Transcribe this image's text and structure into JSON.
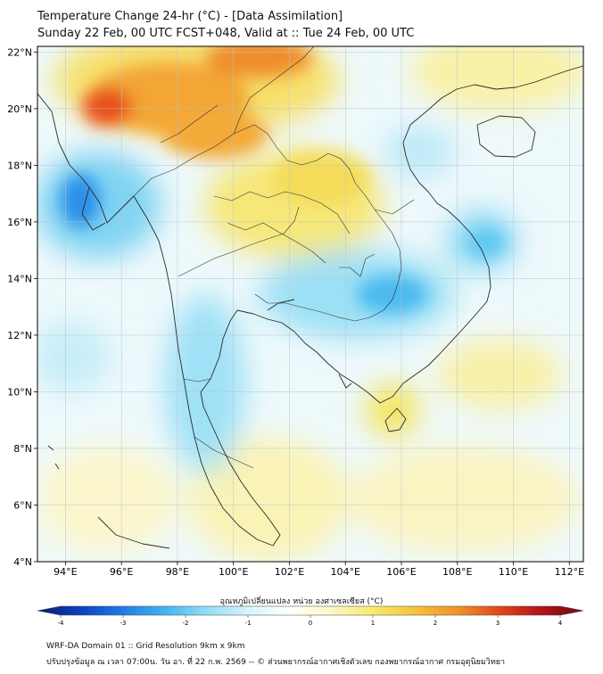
{
  "title_line1": "Temperature Change 24-hr (°C) - [Data Assimilation]",
  "title_line2": "Sunday 22 Feb, 00 UTC FCST+048, Valid at :: Tue 24 Feb, 00 UTC",
  "map": {
    "lon_range": [
      93.0,
      112.5
    ],
    "lat_range": [
      4.0,
      22.2
    ],
    "lon_ticks": [
      "94°E",
      "96°E",
      "98°E",
      "100°E",
      "102°E",
      "104°E",
      "106°E",
      "108°E",
      "110°E",
      "112°E"
    ],
    "lon_values": [
      94,
      96,
      98,
      100,
      102,
      104,
      106,
      108,
      110,
      112
    ],
    "lat_ticks": [
      "4°N",
      "6°N",
      "8°N",
      "10°N",
      "12°N",
      "14°N",
      "16°N",
      "18°N",
      "20°N",
      "22°N"
    ],
    "lat_values": [
      4,
      6,
      8,
      10,
      12,
      14,
      16,
      18,
      20,
      22
    ],
    "grid": true
  },
  "colorbar": {
    "label": "อุณหภูมิเปลี่ยนแปลง หน่วย องศาเซลเซียส (°C)",
    "tick_labels": [
      "-4",
      "-3",
      "-2",
      "-1",
      "0",
      "1",
      "2",
      "3",
      "4"
    ],
    "tick_values": [
      -4,
      -3,
      -2,
      -1,
      0,
      1,
      2,
      3,
      4
    ],
    "min": -4,
    "max": 4,
    "colors": [
      "#0a1a6e",
      "#0d3fbf",
      "#1f7be6",
      "#3fb3f0",
      "#8fdcf7",
      "#d8f3fb",
      "#ffffff",
      "#fbf7c4",
      "#f7ea6a",
      "#f6c23a",
      "#f09227",
      "#e2461b",
      "#b3121b",
      "#6e0a10"
    ]
  },
  "footer_line1": "WRF-DA Domain 01 :: Grid Resolution 9km x 9km",
  "footer_line2": "ปรับปรุงข้อมูล ณ เวลา 07:00น. วัน อา. ที่ 22 ก.พ. 2569 -- © ส่วนพยากรณ์อากาศเชิงตัวเลข กองพยากรณ์อากาศ กรมอุตุนิยมวิทยา"
}
